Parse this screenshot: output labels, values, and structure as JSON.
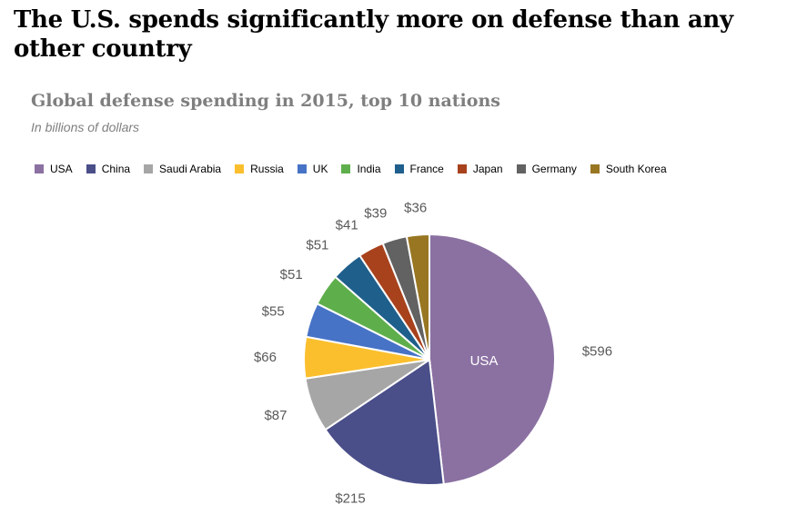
{
  "header": {
    "title": "The U.S. spends significantly more on defense than any other country"
  },
  "chart_data": {
    "type": "pie",
    "title": "Global defense spending in 2015, top 10 nations",
    "subtitle": "In billions of dollars",
    "legend_position": "top",
    "slices": [
      {
        "label": "USA",
        "value": 596,
        "display": "$596",
        "color": "#8b71a2"
      },
      {
        "label": "China",
        "value": 215,
        "display": "$215",
        "color": "#4a4e89"
      },
      {
        "label": "Saudi Arabia",
        "value": 87,
        "display": "$87",
        "color": "#a6a6a6"
      },
      {
        "label": "Russia",
        "value": 66,
        "display": "$66",
        "color": "#fbbf2e"
      },
      {
        "label": "UK",
        "value": 55,
        "display": "$55",
        "color": "#4773c6"
      },
      {
        "label": "India",
        "value": 51,
        "display": "$51",
        "color": "#5eaf4b"
      },
      {
        "label": "France",
        "value": 51,
        "display": "$51",
        "color": "#1f5f8c"
      },
      {
        "label": "Japan",
        "value": 41,
        "display": "$41",
        "color": "#a8421d"
      },
      {
        "label": "Germany",
        "value": 39,
        "display": "$39",
        "color": "#626262"
      },
      {
        "label": "South Korea",
        "value": 36,
        "display": "$36",
        "color": "#987622"
      }
    ],
    "inner_label": "USA"
  }
}
